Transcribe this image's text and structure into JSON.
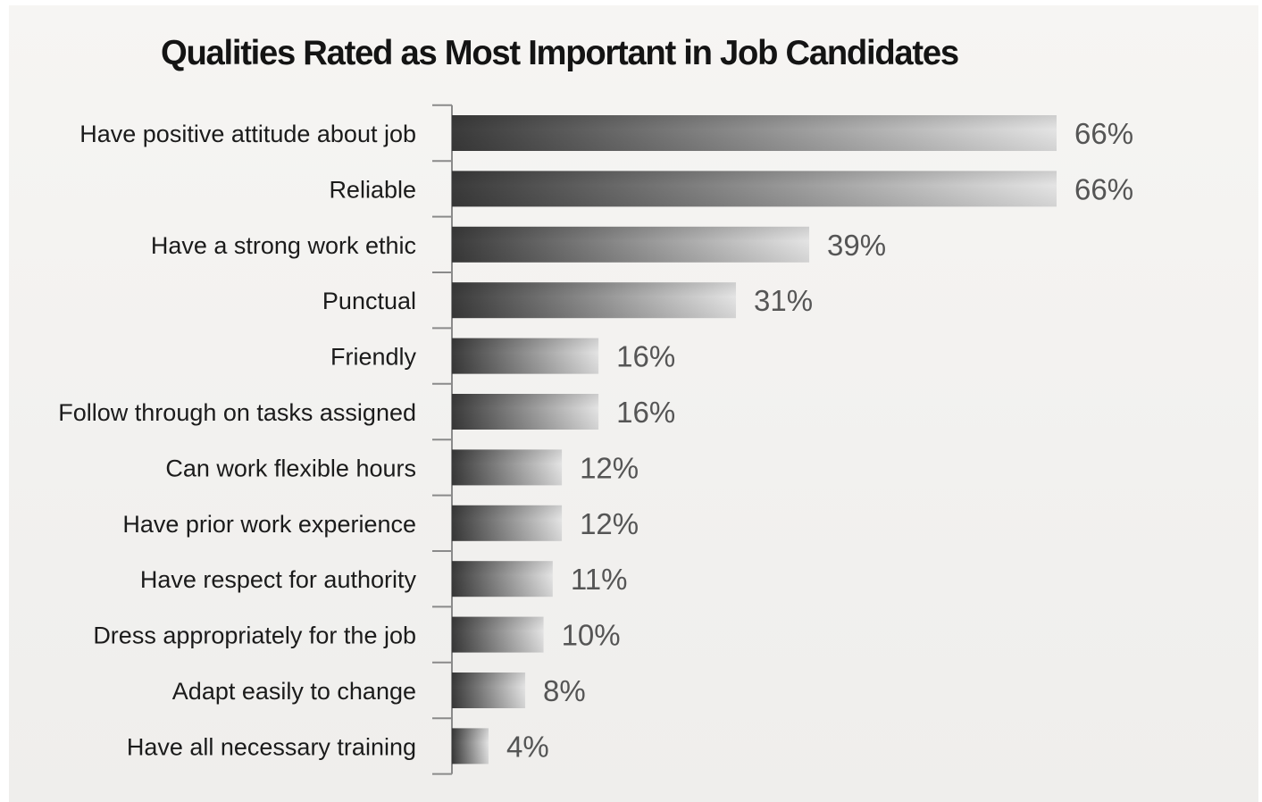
{
  "chart_data": {
    "type": "bar",
    "orientation": "horizontal",
    "title": "Qualities Rated as Most Important in Job Candidates",
    "categories": [
      "Have positive attitude about job",
      "Reliable",
      "Have  a strong work ethic",
      "Punctual",
      "Friendly",
      "Follow through on tasks assigned",
      "Can work flexible hours",
      "Have prior work experience",
      "Have respect for authority",
      "Dress appropriately for the job",
      "Adapt easily to change",
      "Have all necessary training"
    ],
    "values": [
      66,
      66,
      39,
      31,
      16,
      16,
      12,
      12,
      11,
      10,
      8,
      4
    ],
    "value_labels": [
      "66%",
      "66%",
      "39%",
      "31%",
      "16%",
      "16%",
      "12%",
      "12%",
      "11%",
      "10%",
      "8%",
      "4%"
    ],
    "value_unit": "%",
    "xlabel": "",
    "ylabel": "",
    "xlim": [
      0,
      66
    ],
    "grid": false,
    "legend": "none",
    "colors": {
      "bar_dark": "#3a3a3a",
      "bar_light": "#e4e4e4",
      "label_text": "#1b1b1b",
      "value_text": "#555555",
      "axis": "#8a8a8a"
    }
  }
}
